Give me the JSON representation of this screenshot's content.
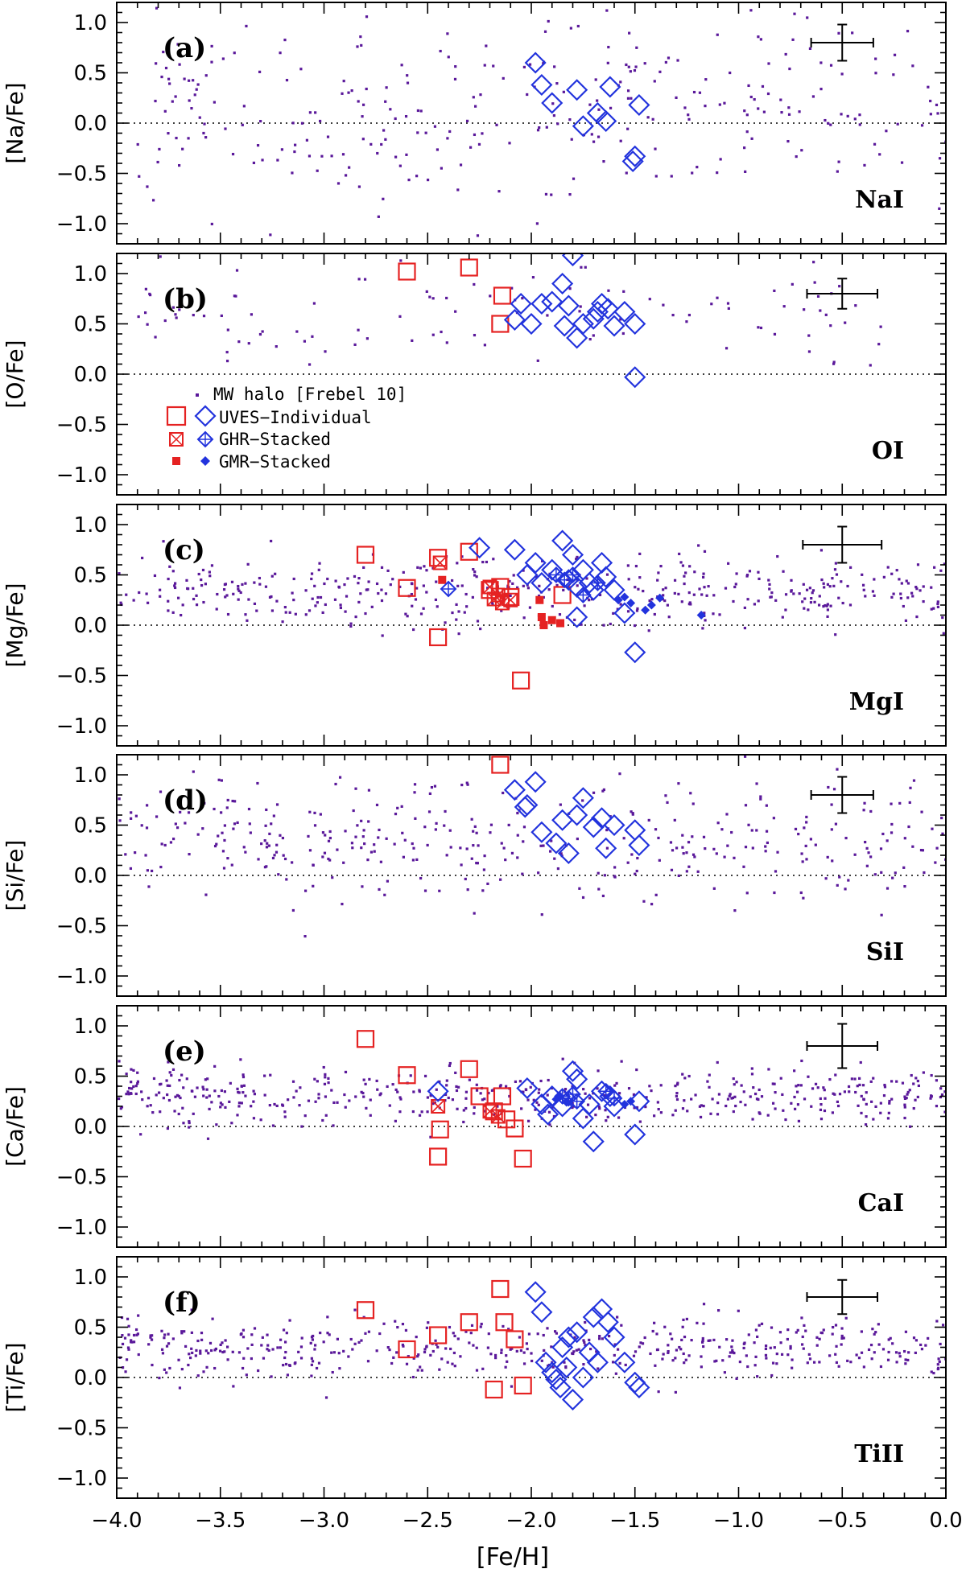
{
  "chart_data": {
    "type": "scatter",
    "xlabel": "[Fe/H]",
    "xlim": [
      -4.0,
      0.0
    ],
    "xticks": [
      "−4.0",
      "−3.5",
      "−3.0",
      "−2.5",
      "−2.0",
      "−1.5",
      "−1.0",
      "−0.5",
      "0.0"
    ],
    "ylim": [
      -1.2,
      1.2
    ],
    "yticks": [
      "1.0",
      "0.5",
      "0.0",
      "−0.5",
      "−1.0"
    ],
    "colors": {
      "halo": "#5a189a",
      "uves_red": "#e52222",
      "uves_blue": "#2233dd",
      "axes": "#000000"
    },
    "legend": {
      "halo": "MW halo [Frebel 10]",
      "uves": "UVES−Individual",
      "ghr": "GHR−Stacked",
      "gmr": "GMR−Stacked"
    },
    "panels": [
      {
        "id": "a",
        "letter": "(a)",
        "ylabel": "[Na/Fe]",
        "species": "NaI",
        "error_bar": {
          "x": -0.5,
          "y": 0.8,
          "dx": 0.15,
          "dy": 0.18
        },
        "halo": {
          "count": 300,
          "seed": 11,
          "mean": 0.15,
          "spread": 0.5,
          "xmin": -3.9,
          "xmax": 0.0
        },
        "uves_blue": [
          [
            -1.98,
            0.6
          ],
          [
            -1.95,
            0.38
          ],
          [
            -1.9,
            0.2
          ],
          [
            -1.78,
            0.33
          ],
          [
            -1.75,
            -0.03
          ],
          [
            -1.68,
            0.1
          ],
          [
            -1.64,
            0.02
          ],
          [
            -1.62,
            0.36
          ],
          [
            -1.5,
            -0.33
          ],
          [
            -1.51,
            -0.38
          ],
          [
            -1.48,
            0.18
          ]
        ],
        "uves_red": [],
        "ghr_red": [],
        "ghr_blue": [],
        "gmr_red": [],
        "gmr_blue": []
      },
      {
        "id": "b",
        "letter": "(b)",
        "ylabel": "[O/Fe]",
        "species": "OI",
        "error_bar": {
          "x": -0.5,
          "y": 0.8,
          "dx": 0.17,
          "dy": 0.15
        },
        "halo": {
          "count": 110,
          "seed": 23,
          "mean": 0.65,
          "spread": 0.25,
          "xmin": -4.0,
          "xmax": -0.3
        },
        "uves_red": [
          [
            -2.6,
            1.02
          ],
          [
            -2.3,
            1.06
          ],
          [
            -2.14,
            0.78
          ],
          [
            -2.15,
            0.5
          ]
        ],
        "uves_blue": [
          [
            -2.05,
            0.7
          ],
          [
            -2.0,
            0.5
          ],
          [
            -1.95,
            0.7
          ],
          [
            -1.9,
            0.72
          ],
          [
            -1.85,
            0.9
          ],
          [
            -1.82,
            0.68
          ],
          [
            -1.8,
            1.18
          ],
          [
            -1.78,
            0.36
          ],
          [
            -1.75,
            0.5
          ],
          [
            -1.7,
            0.55
          ],
          [
            -1.68,
            0.62
          ],
          [
            -1.66,
            0.7
          ],
          [
            -1.63,
            0.65
          ],
          [
            -1.6,
            0.48
          ],
          [
            -1.55,
            0.62
          ],
          [
            -1.5,
            0.5
          ],
          [
            -1.5,
            -0.03
          ],
          [
            -1.84,
            0.48
          ],
          [
            -2.08,
            0.54
          ]
        ],
        "ghr_red": [],
        "ghr_blue": [],
        "gmr_red": [],
        "gmr_blue": []
      },
      {
        "id": "c",
        "letter": "(c)",
        "ylabel": "[Mg/Fe]",
        "species": "MgI",
        "error_bar": {
          "x": -0.5,
          "y": 0.8,
          "dx": 0.19,
          "dy": 0.18
        },
        "halo": {
          "count": 420,
          "seed": 37,
          "mean": 0.32,
          "spread": 0.17,
          "xmin": -4.0,
          "xmax": 0.0
        },
        "uves_red": [
          [
            -2.8,
            0.7
          ],
          [
            -2.6,
            0.37
          ],
          [
            -2.45,
            0.67
          ],
          [
            -2.45,
            -0.12
          ],
          [
            -2.3,
            0.73
          ],
          [
            -2.2,
            0.35
          ],
          [
            -2.15,
            0.38
          ],
          [
            -2.1,
            0.28
          ],
          [
            -2.05,
            -0.55
          ],
          [
            -1.85,
            0.3
          ]
        ],
        "ghr_red": [
          [
            -2.44,
            0.62
          ],
          [
            -2.2,
            0.38
          ],
          [
            -2.16,
            0.3
          ],
          [
            -2.14,
            0.22
          ],
          [
            -2.1,
            0.25
          ],
          [
            -2.18,
            0.26
          ]
        ],
        "gmr_red": [
          [
            -2.43,
            0.45
          ],
          [
            -1.96,
            0.25
          ],
          [
            -1.95,
            0.08
          ],
          [
            -1.94,
            0.0
          ],
          [
            -1.9,
            0.05
          ],
          [
            -1.86,
            0.02
          ]
        ],
        "uves_blue": [
          [
            -2.25,
            0.77
          ],
          [
            -2.08,
            0.75
          ],
          [
            -2.02,
            0.5
          ],
          [
            -1.98,
            0.62
          ],
          [
            -1.95,
            0.42
          ],
          [
            -1.9,
            0.55
          ],
          [
            -1.85,
            0.84
          ],
          [
            -1.82,
            0.45
          ],
          [
            -1.8,
            0.7
          ],
          [
            -1.78,
            0.38
          ],
          [
            -1.75,
            0.55
          ],
          [
            -1.72,
            0.42
          ],
          [
            -1.7,
            0.35
          ],
          [
            -1.66,
            0.62
          ],
          [
            -1.64,
            0.48
          ],
          [
            -1.6,
            0.35
          ],
          [
            -1.55,
            0.12
          ],
          [
            -1.5,
            -0.27
          ],
          [
            -1.78,
            0.08
          ]
        ],
        "ghr_blue": [
          [
            -2.4,
            0.36
          ],
          [
            -1.88,
            0.5
          ],
          [
            -1.84,
            0.45
          ],
          [
            -1.8,
            0.5
          ],
          [
            -1.75,
            0.3
          ],
          [
            -1.68,
            0.42
          ]
        ],
        "gmr_blue": [
          [
            -1.58,
            0.25
          ],
          [
            -1.55,
            0.28
          ],
          [
            -1.52,
            0.22
          ],
          [
            -1.45,
            0.15
          ],
          [
            -1.42,
            0.2
          ],
          [
            -1.38,
            0.27
          ],
          [
            -1.18,
            0.1
          ]
        ]
      },
      {
        "id": "d",
        "letter": "(d)",
        "ylabel": "[Si/Fe]",
        "species": "SiI",
        "error_bar": {
          "x": -0.5,
          "y": 0.8,
          "dx": 0.15,
          "dy": 0.18
        },
        "halo": {
          "count": 380,
          "seed": 51,
          "mean": 0.35,
          "spread": 0.3,
          "xmin": -4.0,
          "xmax": 0.0
        },
        "uves_red": [
          [
            -2.15,
            1.1
          ]
        ],
        "uves_blue": [
          [
            -2.08,
            0.85
          ],
          [
            -2.03,
            0.68
          ],
          [
            -2.02,
            0.7
          ],
          [
            -1.98,
            0.93
          ],
          [
            -1.95,
            0.43
          ],
          [
            -1.88,
            0.32
          ],
          [
            -1.85,
            0.55
          ],
          [
            -1.82,
            0.22
          ],
          [
            -1.78,
            0.6
          ],
          [
            -1.75,
            0.77
          ],
          [
            -1.7,
            0.48
          ],
          [
            -1.66,
            0.57
          ],
          [
            -1.64,
            0.27
          ],
          [
            -1.6,
            0.5
          ],
          [
            -1.5,
            0.45
          ],
          [
            -1.48,
            0.3
          ]
        ],
        "ghr_red": [],
        "ghr_blue": [],
        "gmr_red": [],
        "gmr_blue": []
      },
      {
        "id": "e",
        "letter": "(e)",
        "ylabel": "[Ca/Fe]",
        "species": "CaI",
        "error_bar": {
          "x": -0.5,
          "y": 0.8,
          "dx": 0.17,
          "dy": 0.22
        },
        "halo": {
          "count": 480,
          "seed": 67,
          "mean": 0.3,
          "spread": 0.13,
          "xmin": -4.0,
          "xmax": 0.0
        },
        "uves_red": [
          [
            -2.8,
            0.87
          ],
          [
            -2.6,
            0.51
          ],
          [
            -2.45,
            -0.3
          ],
          [
            -2.44,
            -0.03
          ],
          [
            -2.3,
            0.57
          ],
          [
            -2.25,
            0.3
          ],
          [
            -2.18,
            0.15
          ],
          [
            -2.14,
            0.3
          ],
          [
            -2.12,
            0.07
          ],
          [
            -2.08,
            -0.02
          ],
          [
            -2.04,
            -0.32
          ]
        ],
        "ghr_red": [
          [
            -2.45,
            0.2
          ],
          [
            -2.2,
            0.15
          ],
          [
            -2.16,
            0.1
          ]
        ],
        "gmr_red": [],
        "uves_blue": [
          [
            -2.45,
            0.35
          ],
          [
            -2.02,
            0.38
          ],
          [
            -1.95,
            0.22
          ],
          [
            -1.9,
            0.3
          ],
          [
            -1.85,
            0.2
          ],
          [
            -1.8,
            0.55
          ],
          [
            -1.78,
            0.47
          ],
          [
            -1.75,
            0.08
          ],
          [
            -1.7,
            -0.15
          ],
          [
            -1.66,
            0.35
          ],
          [
            -1.62,
            0.3
          ],
          [
            -1.6,
            0.2
          ],
          [
            -1.5,
            -0.08
          ],
          [
            -1.48,
            0.25
          ],
          [
            -1.92,
            0.12
          ],
          [
            -1.72,
            0.22
          ]
        ],
        "ghr_blue": [
          [
            -1.85,
            0.3
          ],
          [
            -1.82,
            0.28
          ],
          [
            -1.8,
            0.32
          ],
          [
            -1.78,
            0.25
          ],
          [
            -1.64,
            0.35
          ],
          [
            -1.6,
            0.28
          ]
        ],
        "gmr_blue": [
          [
            -1.88,
            0.27
          ],
          [
            -1.86,
            0.3
          ],
          [
            -1.83,
            0.24
          ],
          [
            -1.55,
            0.22
          ],
          [
            -1.52,
            0.25
          ]
        ]
      },
      {
        "id": "f",
        "letter": "(f)",
        "ylabel": "[Ti/Fe]",
        "species": "TiII",
        "error_bar": {
          "x": -0.5,
          "y": 0.8,
          "dx": 0.17,
          "dy": 0.17
        },
        "halo": {
          "count": 480,
          "seed": 83,
          "mean": 0.3,
          "spread": 0.15,
          "xmin": -4.0,
          "xmax": 0.0
        },
        "uves_red": [
          [
            -2.8,
            0.67
          ],
          [
            -2.6,
            0.28
          ],
          [
            -2.45,
            0.42
          ],
          [
            -2.3,
            0.55
          ],
          [
            -2.18,
            -0.12
          ],
          [
            -2.15,
            0.88
          ],
          [
            -2.13,
            0.55
          ],
          [
            -2.08,
            0.38
          ],
          [
            -2.04,
            -0.08
          ]
        ],
        "uves_blue": [
          [
            -1.98,
            0.85
          ],
          [
            -1.95,
            0.65
          ],
          [
            -1.93,
            0.15
          ],
          [
            -1.9,
            0.05
          ],
          [
            -1.88,
            -0.02
          ],
          [
            -1.85,
            0.3
          ],
          [
            -1.83,
            0.1
          ],
          [
            -1.8,
            -0.22
          ],
          [
            -1.78,
            0.45
          ],
          [
            -1.75,
            0.0
          ],
          [
            -1.72,
            0.25
          ],
          [
            -1.7,
            0.6
          ],
          [
            -1.68,
            0.15
          ],
          [
            -1.66,
            0.68
          ],
          [
            -1.63,
            0.55
          ],
          [
            -1.6,
            0.4
          ],
          [
            -1.55,
            0.15
          ],
          [
            -1.5,
            -0.05
          ],
          [
            -1.48,
            -0.1
          ],
          [
            -1.82,
            0.4
          ],
          [
            -1.86,
            -0.1
          ]
        ],
        "ghr_red": [],
        "ghr_blue": [],
        "gmr_red": [],
        "gmr_blue": []
      }
    ]
  }
}
